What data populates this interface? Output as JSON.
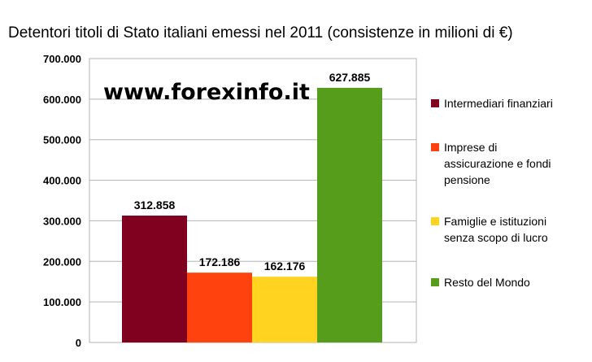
{
  "chart_data": {
    "type": "bar",
    "title": "Detentori titoli di Stato italiani emessi nel 2011 (consistenze in milioni di €)",
    "watermark": "www.forexinfo.it",
    "ylim": [
      0,
      700000
    ],
    "yticks": [
      "0",
      "100.000",
      "200.000",
      "300.000",
      "400.000",
      "500.000",
      "600.000",
      "700.000"
    ],
    "grid": true,
    "legend_position": "right",
    "series": [
      {
        "name": "Intermediari finanziari",
        "value": 312858,
        "label": "312.858",
        "color": "#800020"
      },
      {
        "name": "Imprese di assicurazione e fondi pensione",
        "value": 172186,
        "label": "172.186",
        "color": "#ff420e"
      },
      {
        "name": "Famiglie e istituzioni senza scopo di lucro",
        "value": 162176,
        "label": "162.176",
        "color": "#ffd320"
      },
      {
        "name": "Resto del Mondo",
        "value": 627885,
        "label": "627.885",
        "color": "#579d1c"
      }
    ],
    "legend": [
      [
        "Intermediari finanziari"
      ],
      [
        "Imprese di",
        "assicurazione e fondi",
        "pensione"
      ],
      [
        "Famiglie e istituzioni",
        "senza scopo di lucro"
      ],
      [
        "Resto del Mondo"
      ]
    ]
  }
}
